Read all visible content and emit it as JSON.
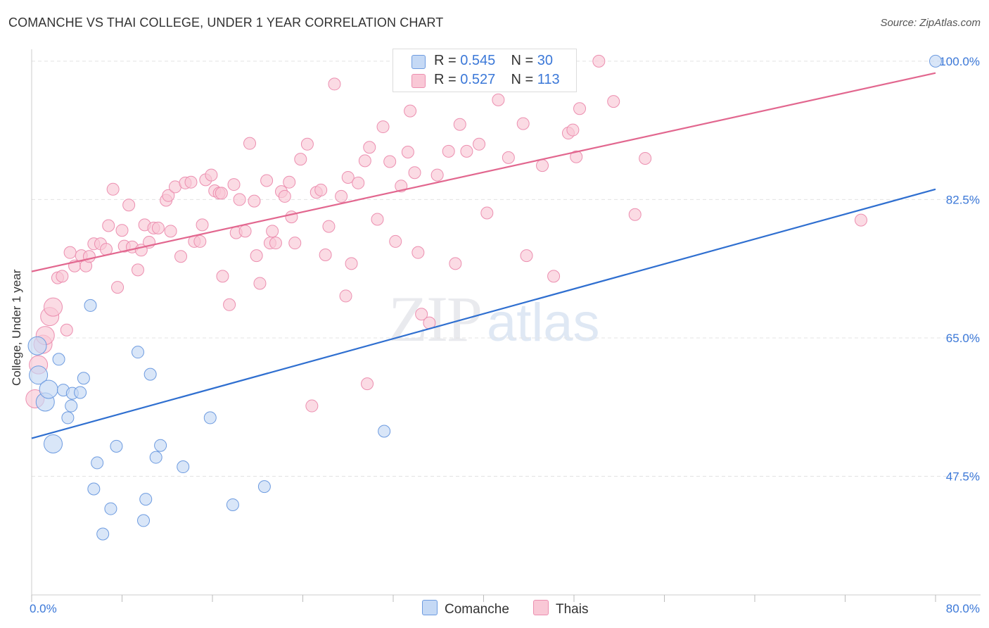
{
  "title": "COMANCHE VS THAI COLLEGE, UNDER 1 YEAR CORRELATION CHART",
  "source": "Source: ZipAtlas.com",
  "watermark": {
    "zip": "ZIP",
    "atlas": "atlas"
  },
  "legend_top": [
    {
      "r_label": "R =",
      "r_value": "0.545",
      "n_label": "N =",
      "n_value": "30"
    },
    {
      "r_label": "R =",
      "r_value": "0.527",
      "n_label": "N =",
      "n_value": "113"
    }
  ],
  "legend_bottom": [
    "Comanche",
    "Thais"
  ],
  "colors": {
    "comanche_fill": "#c5d9f5",
    "comanche_stroke": "#6d9be0",
    "comanche_line": "#2f6fd0",
    "thais_fill": "#f9c8d6",
    "thais_stroke": "#ec8fb0",
    "thais_line": "#e2678f",
    "tick_label": "#3b78d8",
    "grid": "#e3e3e3"
  },
  "chart_data": {
    "type": "scatter",
    "title": "COMANCHE VS THAI COLLEGE, UNDER 1 YEAR CORRELATION CHART",
    "xlabel": "",
    "ylabel": "College, Under 1 year",
    "xlim": [
      0,
      80
    ],
    "ylim": [
      32.5,
      101.5
    ],
    "x_tick_labels": [
      "0.0%",
      "80.0%"
    ],
    "y_ticks": [
      47.5,
      65.0,
      82.5,
      100.0
    ],
    "y_tick_labels": [
      "47.5%",
      "65.0%",
      "82.5%",
      "100.0%"
    ],
    "grid": "horizontal dashed",
    "legend_placement": "top-center",
    "series": [
      {
        "name": "Comanche",
        "r": 0.545,
        "n": 30,
        "trend": {
          "x0": 0,
          "y0": 52.3,
          "x1": 80,
          "y1": 83.8
        },
        "points": [
          [
            0.5,
            64.0
          ],
          [
            0.6,
            60.3
          ],
          [
            1.2,
            56.9
          ],
          [
            1.5,
            58.5
          ],
          [
            1.9,
            51.6
          ],
          [
            2.4,
            62.3
          ],
          [
            2.8,
            58.4
          ],
          [
            3.2,
            54.9
          ],
          [
            3.5,
            56.4
          ],
          [
            3.6,
            58.0
          ],
          [
            4.3,
            58.1
          ],
          [
            4.6,
            59.9
          ],
          [
            5.2,
            69.1
          ],
          [
            5.5,
            45.9
          ],
          [
            5.8,
            49.2
          ],
          [
            6.3,
            40.2
          ],
          [
            7.0,
            43.4
          ],
          [
            7.5,
            51.3
          ],
          [
            9.4,
            63.2
          ],
          [
            9.9,
            41.9
          ],
          [
            10.1,
            44.6
          ],
          [
            10.5,
            60.4
          ],
          [
            11.0,
            49.9
          ],
          [
            11.4,
            51.4
          ],
          [
            13.4,
            48.7
          ],
          [
            15.8,
            54.9
          ],
          [
            17.8,
            43.9
          ],
          [
            20.6,
            46.2
          ],
          [
            31.2,
            53.2
          ],
          [
            80.0,
            100.0
          ]
        ]
      },
      {
        "name": "Thais",
        "r": 0.527,
        "n": 113,
        "trend": {
          "x0": 0,
          "y0": 73.4,
          "x1": 80,
          "y1": 98.5
        },
        "points": [
          [
            0.3,
            57.3
          ],
          [
            0.6,
            61.6
          ],
          [
            1.0,
            64.2
          ],
          [
            1.2,
            65.3
          ],
          [
            1.6,
            67.7
          ],
          [
            1.9,
            68.9
          ],
          [
            2.3,
            72.6
          ],
          [
            2.7,
            72.8
          ],
          [
            3.1,
            66.0
          ],
          [
            3.4,
            75.8
          ],
          [
            3.8,
            74.1
          ],
          [
            4.4,
            75.4
          ],
          [
            4.8,
            74.1
          ],
          [
            5.1,
            75.3
          ],
          [
            5.5,
            76.9
          ],
          [
            6.1,
            76.9
          ],
          [
            6.6,
            76.2
          ],
          [
            6.8,
            79.2
          ],
          [
            7.2,
            83.8
          ],
          [
            7.6,
            71.4
          ],
          [
            8.0,
            78.6
          ],
          [
            8.2,
            76.6
          ],
          [
            8.6,
            81.8
          ],
          [
            8.9,
            76.5
          ],
          [
            9.4,
            73.6
          ],
          [
            9.7,
            76.1
          ],
          [
            10.0,
            79.3
          ],
          [
            10.4,
            77.1
          ],
          [
            10.8,
            78.9
          ],
          [
            11.2,
            78.9
          ],
          [
            11.9,
            82.4
          ],
          [
            12.1,
            83.0
          ],
          [
            12.3,
            78.5
          ],
          [
            12.7,
            84.1
          ],
          [
            13.2,
            75.3
          ],
          [
            13.6,
            84.6
          ],
          [
            14.1,
            84.7
          ],
          [
            14.4,
            77.2
          ],
          [
            14.9,
            77.2
          ],
          [
            15.1,
            79.3
          ],
          [
            15.4,
            85.0
          ],
          [
            15.9,
            85.6
          ],
          [
            16.2,
            83.6
          ],
          [
            16.6,
            83.3
          ],
          [
            16.9,
            72.8
          ],
          [
            17.5,
            69.2
          ],
          [
            17.9,
            84.4
          ],
          [
            18.1,
            78.3
          ],
          [
            18.4,
            82.5
          ],
          [
            18.9,
            78.5
          ],
          [
            19.3,
            89.6
          ],
          [
            19.7,
            82.3
          ],
          [
            19.9,
            75.4
          ],
          [
            20.2,
            71.9
          ],
          [
            20.8,
            84.9
          ],
          [
            21.1,
            77.0
          ],
          [
            21.3,
            78.5
          ],
          [
            21.6,
            77.0
          ],
          [
            22.1,
            83.5
          ],
          [
            22.4,
            82.9
          ],
          [
            22.8,
            84.7
          ],
          [
            23.0,
            80.3
          ],
          [
            23.3,
            77.0
          ],
          [
            23.8,
            87.6
          ],
          [
            24.4,
            89.5
          ],
          [
            24.8,
            56.4
          ],
          [
            25.2,
            83.4
          ],
          [
            25.6,
            83.7
          ],
          [
            26.0,
            75.5
          ],
          [
            26.3,
            79.1
          ],
          [
            26.8,
            97.1
          ],
          [
            27.4,
            82.9
          ],
          [
            27.8,
            70.3
          ],
          [
            28.0,
            85.3
          ],
          [
            28.3,
            74.4
          ],
          [
            28.9,
            84.6
          ],
          [
            29.5,
            87.4
          ],
          [
            29.7,
            59.2
          ],
          [
            29.9,
            89.1
          ],
          [
            30.6,
            80.0
          ],
          [
            31.1,
            91.7
          ],
          [
            31.7,
            87.3
          ],
          [
            32.2,
            77.2
          ],
          [
            32.7,
            84.2
          ],
          [
            33.3,
            88.5
          ],
          [
            33.5,
            93.7
          ],
          [
            33.9,
            85.9
          ],
          [
            34.2,
            75.8
          ],
          [
            34.5,
            68.0
          ],
          [
            35.2,
            66.9
          ],
          [
            35.9,
            85.6
          ],
          [
            36.9,
            88.6
          ],
          [
            37.5,
            74.4
          ],
          [
            37.9,
            92.0
          ],
          [
            38.5,
            88.6
          ],
          [
            39.6,
            89.5
          ],
          [
            40.3,
            80.8
          ],
          [
            41.3,
            95.1
          ],
          [
            42.2,
            87.8
          ],
          [
            43.5,
            92.1
          ],
          [
            43.8,
            75.4
          ],
          [
            45.2,
            86.8
          ],
          [
            46.2,
            72.8
          ],
          [
            47.5,
            90.9
          ],
          [
            47.9,
            91.3
          ],
          [
            48.2,
            87.9
          ],
          [
            48.5,
            94.0
          ],
          [
            50.2,
            100.0
          ],
          [
            51.5,
            94.9
          ],
          [
            53.4,
            80.6
          ],
          [
            54.3,
            87.7
          ],
          [
            73.4,
            79.9
          ],
          [
            16.8,
            83.3
          ]
        ]
      }
    ]
  }
}
